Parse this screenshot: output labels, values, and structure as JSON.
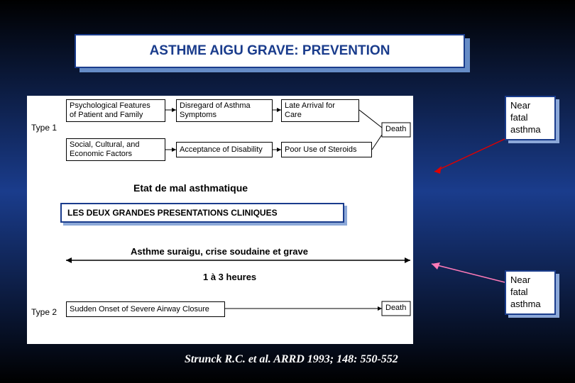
{
  "title": "ASTHME AIGU GRAVE: PREVENTION",
  "diagram": {
    "row1_label": "Type 1",
    "row2_label": "Type 2",
    "box_psych": "Psychological Features\nof Patient and Family",
    "box_social": "Social, Cultural, and\nEconomic Factors",
    "box_disregard": "Disregard of Asthma\nSymptoms",
    "box_accept": "Acceptance of Disability",
    "box_late": "Late Arrival for\nCare",
    "box_steroids": "Poor Use of Steroids",
    "box_sudden": "Sudden Onset of Severe Airway Closure",
    "etat": "Etat de mal asthmatique",
    "banner": "LES DEUX GRANDES PRESENTATIONS CLINIQUES",
    "suraigu": "Asthme suraigu, crise soudaine et grave",
    "hours": "1 à 3 heures",
    "death_right": "Death"
  },
  "near_fatal": "Near\nfatal\nasthma",
  "citation": "Strunck R.C. et al. ARRD 1993; 148: 550-552",
  "colors": {
    "bg_top": "#000000",
    "bg_mid": "#1a3c8c",
    "border": "#1a3c8c",
    "shadow": "#8ca8d8",
    "arrow_red": "#d00000",
    "arrow_pink": "#ff7ab8"
  }
}
